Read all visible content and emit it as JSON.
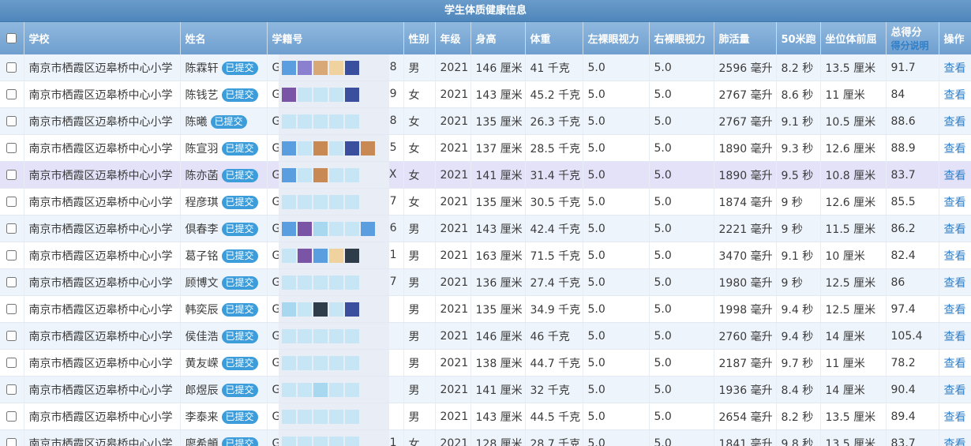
{
  "table_title": "学生体质健康信息",
  "headers": {
    "school": "学校",
    "name": "姓名",
    "student_id": "学籍号",
    "gender": "性别",
    "grade": "年级",
    "height": "身高",
    "weight": "体重",
    "left_eye": "左裸眼视力",
    "right_eye": "右裸眼视力",
    "vital_capacity": "肺活量",
    "run_50m": "50米跑",
    "sit_reach": "坐位体前屈",
    "total_score": "总得分",
    "score_note": "得分说明",
    "action": "操作"
  },
  "status_badge": "已提交",
  "action_label": "查看",
  "highlight_row_index": 4,
  "rows": [
    {
      "school": "南京市栖霞区迈皋桥中心小学",
      "name": "陈霖轩",
      "id_prefix": "G",
      "id_suffix": "8",
      "gender": "男",
      "grade": "2021",
      "height": "146 厘米",
      "weight": "41 千克",
      "left_eye": "5.0",
      "right_eye": "5.0",
      "vital_capacity": "2596 毫升",
      "run_50m": "8.2 秒",
      "sit_reach": "13.5 厘米",
      "total_score": "91.7"
    },
    {
      "school": "南京市栖霞区迈皋桥中心小学",
      "name": "陈钱艺",
      "id_prefix": "G",
      "id_suffix": "9",
      "gender": "女",
      "grade": "2021",
      "height": "143 厘米",
      "weight": "45.2 千克",
      "left_eye": "5.0",
      "right_eye": "5.0",
      "vital_capacity": "2767 毫升",
      "run_50m": "8.6 秒",
      "sit_reach": "11 厘米",
      "total_score": "84"
    },
    {
      "school": "南京市栖霞区迈皋桥中心小学",
      "name": "陈曦",
      "id_prefix": "G",
      "id_suffix": "8",
      "gender": "女",
      "grade": "2021",
      "height": "135 厘米",
      "weight": "26.3 千克",
      "left_eye": "5.0",
      "right_eye": "5.0",
      "vital_capacity": "2767 毫升",
      "run_50m": "9.1 秒",
      "sit_reach": "10.5 厘米",
      "total_score": "88.6"
    },
    {
      "school": "南京市栖霞区迈皋桥中心小学",
      "name": "陈宣羽",
      "id_prefix": "G",
      "id_suffix": "5",
      "gender": "女",
      "grade": "2021",
      "height": "137 厘米",
      "weight": "28.5 千克",
      "left_eye": "5.0",
      "right_eye": "5.0",
      "vital_capacity": "1890 毫升",
      "run_50m": "9.3 秒",
      "sit_reach": "12.6 厘米",
      "total_score": "88.9"
    },
    {
      "school": "南京市栖霞区迈皋桥中心小学",
      "name": "陈亦菡",
      "id_prefix": "G",
      "id_suffix": "X",
      "gender": "女",
      "grade": "2021",
      "height": "141 厘米",
      "weight": "31.4 千克",
      "left_eye": "5.0",
      "right_eye": "5.0",
      "vital_capacity": "1890 毫升",
      "run_50m": "9.5 秒",
      "sit_reach": "10.8 厘米",
      "total_score": "83.7"
    },
    {
      "school": "南京市栖霞区迈皋桥中心小学",
      "name": "程彦琪",
      "id_prefix": "G",
      "id_suffix": "7",
      "gender": "女",
      "grade": "2021",
      "height": "135 厘米",
      "weight": "30.5 千克",
      "left_eye": "5.0",
      "right_eye": "5.0",
      "vital_capacity": "1874 毫升",
      "run_50m": "9 秒",
      "sit_reach": "12.6 厘米",
      "total_score": "85.5"
    },
    {
      "school": "南京市栖霞区迈皋桥中心小学",
      "name": "倶春李",
      "id_prefix": "G",
      "id_suffix": "6",
      "gender": "男",
      "grade": "2021",
      "height": "143 厘米",
      "weight": "42.4 千克",
      "left_eye": "5.0",
      "right_eye": "5.0",
      "vital_capacity": "2221 毫升",
      "run_50m": "9 秒",
      "sit_reach": "11.5 厘米",
      "total_score": "86.2"
    },
    {
      "school": "南京市栖霞区迈皋桥中心小学",
      "name": "葛子铭",
      "id_prefix": "G",
      "id_suffix": "1",
      "gender": "男",
      "grade": "2021",
      "height": "163 厘米",
      "weight": "71.5 千克",
      "left_eye": "5.0",
      "right_eye": "5.0",
      "vital_capacity": "3470 毫升",
      "run_50m": "9.1 秒",
      "sit_reach": "10 厘米",
      "total_score": "82.4"
    },
    {
      "school": "南京市栖霞区迈皋桥中心小学",
      "name": "顾博文",
      "id_prefix": "G",
      "id_suffix": "7",
      "gender": "男",
      "grade": "2021",
      "height": "136 厘米",
      "weight": "27.4 千克",
      "left_eye": "5.0",
      "right_eye": "5.0",
      "vital_capacity": "1980 毫升",
      "run_50m": "9 秒",
      "sit_reach": "12.5 厘米",
      "total_score": "86"
    },
    {
      "school": "南京市栖霞区迈皋桥中心小学",
      "name": "韩奕辰",
      "id_prefix": "G",
      "id_suffix": "",
      "gender": "男",
      "grade": "2021",
      "height": "135 厘米",
      "weight": "34.9 千克",
      "left_eye": "5.0",
      "right_eye": "5.0",
      "vital_capacity": "1998 毫升",
      "run_50m": "9.4 秒",
      "sit_reach": "12.5 厘米",
      "total_score": "97.4"
    },
    {
      "school": "南京市栖霞区迈皋桥中心小学",
      "name": "侯佳浩",
      "id_prefix": "G",
      "id_suffix": "",
      "gender": "男",
      "grade": "2021",
      "height": "146 厘米",
      "weight": "46 千克",
      "left_eye": "5.0",
      "right_eye": "5.0",
      "vital_capacity": "2760 毫升",
      "run_50m": "9.4 秒",
      "sit_reach": "14 厘米",
      "total_score": "105.4"
    },
    {
      "school": "南京市栖霞区迈皋桥中心小学",
      "name": "黄友嵘",
      "id_prefix": "G",
      "id_suffix": "",
      "gender": "男",
      "grade": "2021",
      "height": "138 厘米",
      "weight": "44.7 千克",
      "left_eye": "5.0",
      "right_eye": "5.0",
      "vital_capacity": "2187 毫升",
      "run_50m": "9.7 秒",
      "sit_reach": "11 厘米",
      "total_score": "78.2"
    },
    {
      "school": "南京市栖霞区迈皋桥中心小学",
      "name": "郎煜辰",
      "id_prefix": "G",
      "id_suffix": "",
      "gender": "男",
      "grade": "2021",
      "height": "141 厘米",
      "weight": "32 千克",
      "left_eye": "5.0",
      "right_eye": "5.0",
      "vital_capacity": "1936 毫升",
      "run_50m": "8.4 秒",
      "sit_reach": "14 厘米",
      "total_score": "90.4"
    },
    {
      "school": "南京市栖霞区迈皋桥中心小学",
      "name": "李泰来",
      "id_prefix": "G.",
      "id_suffix": "",
      "gender": "男",
      "grade": "2021",
      "height": "143 厘米",
      "weight": "44.5 千克",
      "left_eye": "5.0",
      "right_eye": "5.0",
      "vital_capacity": "2654 毫升",
      "run_50m": "8.2 秒",
      "sit_reach": "13.5 厘米",
      "total_score": "89.4"
    },
    {
      "school": "南京市栖霞区迈皋桥中心小学",
      "name": "廖希頔",
      "id_prefix": "G321",
      "id_suffix": "1",
      "gender": "女",
      "grade": "2021",
      "height": "128 厘米",
      "weight": "28.7 千克",
      "left_eye": "5.0",
      "right_eye": "5.0",
      "vital_capacity": "1841 毫升",
      "run_50m": "9.8 秒",
      "sit_reach": "13.5 厘米",
      "total_score": "83.7"
    }
  ],
  "mosaic_colors": [
    "#5a9ee0",
    "#8b7fcf",
    "#d9a877",
    "#f0d29e",
    "#3a4f9e",
    "#7a55a6",
    "#2f3c4a",
    "#c98955",
    "#a8d8f0",
    "#c7e6f5"
  ]
}
